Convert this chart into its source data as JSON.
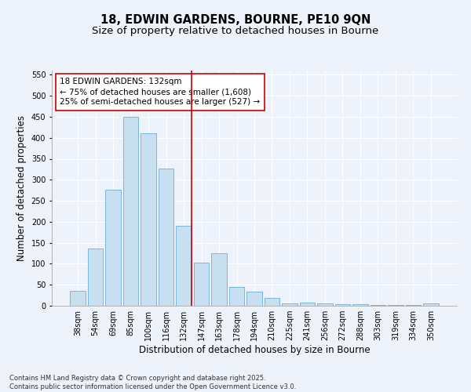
{
  "title_line1": "18, EDWIN GARDENS, BOURNE, PE10 9QN",
  "title_line2": "Size of property relative to detached houses in Bourne",
  "xlabel": "Distribution of detached houses by size in Bourne",
  "ylabel": "Number of detached properties",
  "categories": [
    "38sqm",
    "54sqm",
    "69sqm",
    "85sqm",
    "100sqm",
    "116sqm",
    "132sqm",
    "147sqm",
    "163sqm",
    "178sqm",
    "194sqm",
    "210sqm",
    "225sqm",
    "241sqm",
    "256sqm",
    "272sqm",
    "288sqm",
    "303sqm",
    "319sqm",
    "334sqm",
    "350sqm"
  ],
  "values": [
    35,
    137,
    277,
    450,
    410,
    327,
    190,
    103,
    125,
    45,
    33,
    18,
    6,
    7,
    6,
    4,
    4,
    1,
    1,
    1,
    5
  ],
  "bar_color": "#c8dff0",
  "bar_edge_color": "#6aaed6",
  "background_color": "#eef2fb",
  "grid_color": "#ffffff",
  "vline_x_index": 6,
  "vline_color": "#cc0000",
  "annotation_text": "18 EDWIN GARDENS: 132sqm\n← 75% of detached houses are smaller (1,608)\n25% of semi-detached houses are larger (527) →",
  "annotation_box_color": "#ffffff",
  "annotation_box_edge": "#cc0000",
  "ylim": [
    0,
    560
  ],
  "yticks": [
    0,
    50,
    100,
    150,
    200,
    250,
    300,
    350,
    400,
    450,
    500,
    550
  ],
  "footer": "Contains HM Land Registry data © Crown copyright and database right 2025.\nContains public sector information licensed under the Open Government Licence v3.0.",
  "title_fontsize": 10.5,
  "subtitle_fontsize": 9.5,
  "xlabel_fontsize": 8.5,
  "ylabel_fontsize": 8.5,
  "tick_fontsize": 7,
  "annotation_fontsize": 7.5,
  "footer_fontsize": 6
}
